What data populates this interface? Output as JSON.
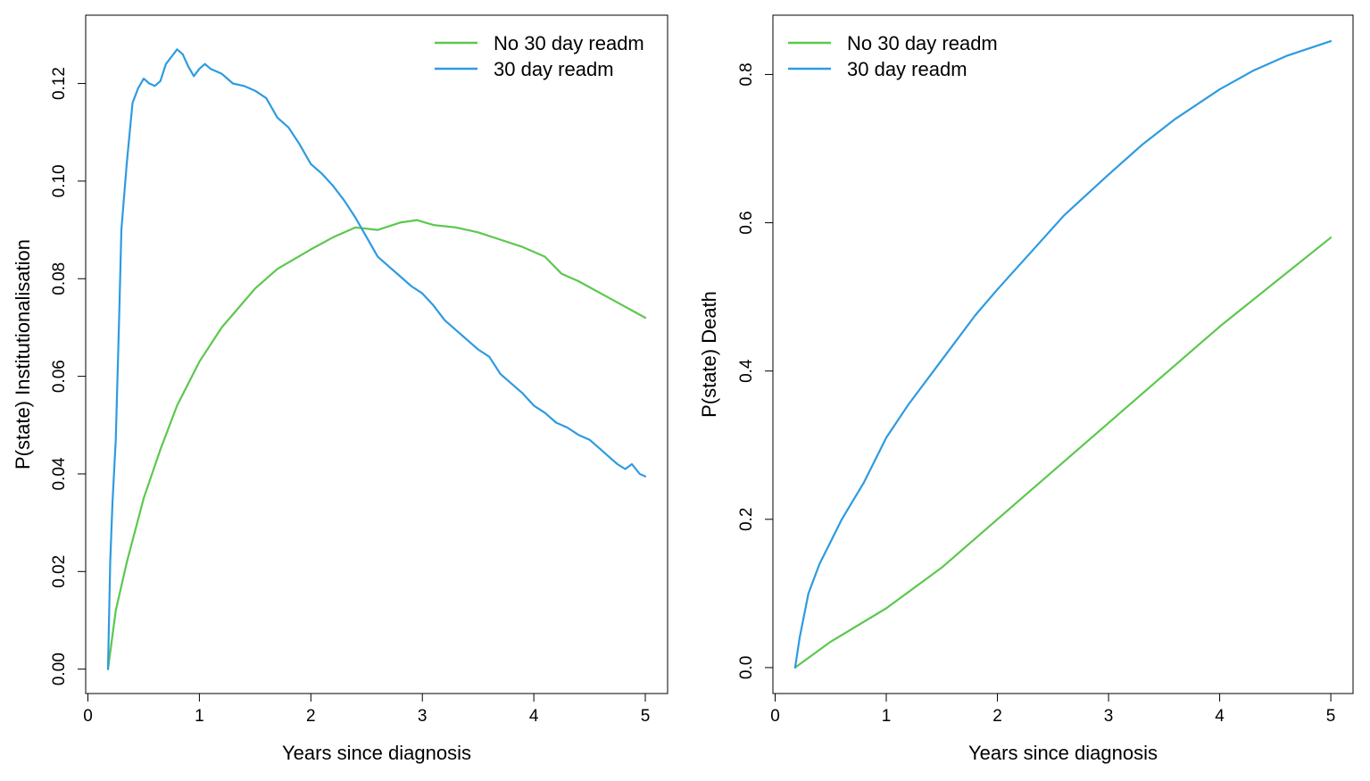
{
  "chart_data": [
    {
      "type": "line",
      "title": "",
      "xlabel": "Years since diagnosis",
      "ylabel": "P(state) Institutionalisation",
      "xlim": [
        -0.02,
        5.2
      ],
      "ylim": [
        -0.005,
        0.134
      ],
      "xticks": [
        0,
        1,
        2,
        3,
        4,
        5
      ],
      "xtick_labels": [
        "0",
        "1",
        "2",
        "3",
        "4",
        "5"
      ],
      "yticks": [
        0.0,
        0.02,
        0.04,
        0.06,
        0.08,
        0.1,
        0.12
      ],
      "ytick_labels": [
        "0.00",
        "0.02",
        "0.04",
        "0.06",
        "0.08",
        "0.10",
        "0.12"
      ],
      "grid": false,
      "legend_position": "top-right",
      "series": [
        {
          "name": "No 30 day readm",
          "color": "#5cc84e",
          "x": [
            0.18,
            0.25,
            0.35,
            0.5,
            0.65,
            0.8,
            1.0,
            1.2,
            1.5,
            1.7,
            2.0,
            2.2,
            2.4,
            2.6,
            2.8,
            2.95,
            3.1,
            3.3,
            3.5,
            3.7,
            3.9,
            4.1,
            4.25,
            4.4,
            4.6,
            4.8,
            5.0
          ],
          "y": [
            0.0,
            0.012,
            0.022,
            0.035,
            0.045,
            0.054,
            0.063,
            0.07,
            0.078,
            0.082,
            0.086,
            0.0885,
            0.0905,
            0.09,
            0.0915,
            0.092,
            0.091,
            0.0905,
            0.0895,
            0.088,
            0.0865,
            0.0845,
            0.081,
            0.0795,
            0.077,
            0.0745,
            0.072
          ]
        },
        {
          "name": "30 day readm",
          "color": "#2e9be0",
          "x": [
            0.18,
            0.2,
            0.22,
            0.25,
            0.28,
            0.3,
            0.35,
            0.4,
            0.45,
            0.5,
            0.55,
            0.6,
            0.65,
            0.7,
            0.75,
            0.8,
            0.85,
            0.9,
            0.95,
            1.0,
            1.05,
            1.1,
            1.2,
            1.3,
            1.4,
            1.5,
            1.6,
            1.7,
            1.8,
            1.9,
            2.0,
            2.1,
            2.2,
            2.3,
            2.4,
            2.5,
            2.6,
            2.7,
            2.8,
            2.9,
            3.0,
            3.1,
            3.2,
            3.3,
            3.4,
            3.5,
            3.6,
            3.7,
            3.8,
            3.9,
            4.0,
            4.1,
            4.2,
            4.3,
            4.4,
            4.5,
            4.6,
            4.7,
            4.75,
            4.82,
            4.88,
            4.95,
            5.0
          ],
          "y": [
            0.0,
            0.022,
            0.034,
            0.047,
            0.072,
            0.09,
            0.104,
            0.116,
            0.119,
            0.121,
            0.12,
            0.1195,
            0.1205,
            0.124,
            0.1255,
            0.127,
            0.126,
            0.1235,
            0.1215,
            0.123,
            0.124,
            0.123,
            0.122,
            0.12,
            0.1195,
            0.1185,
            0.117,
            0.113,
            0.111,
            0.1075,
            0.1035,
            0.1015,
            0.099,
            0.096,
            0.0925,
            0.0885,
            0.0845,
            0.0825,
            0.0805,
            0.0785,
            0.077,
            0.0745,
            0.0715,
            0.0695,
            0.0675,
            0.0655,
            0.064,
            0.0605,
            0.0585,
            0.0565,
            0.054,
            0.0525,
            0.0505,
            0.0495,
            0.048,
            0.047,
            0.045,
            0.043,
            0.042,
            0.041,
            0.042,
            0.04,
            0.0395
          ]
        }
      ]
    },
    {
      "type": "line",
      "title": "",
      "xlabel": "Years since diagnosis",
      "ylabel": "P(state) Death",
      "xlim": [
        -0.02,
        5.2
      ],
      "ylim": [
        -0.035,
        0.88
      ],
      "xticks": [
        0,
        1,
        2,
        3,
        4,
        5
      ],
      "xtick_labels": [
        "0",
        "1",
        "2",
        "3",
        "4",
        "5"
      ],
      "yticks": [
        0.0,
        0.2,
        0.4,
        0.6,
        0.8
      ],
      "ytick_labels": [
        "0.0",
        "0.2",
        "0.4",
        "0.6",
        "0.8"
      ],
      "grid": false,
      "legend_position": "top-left",
      "series": [
        {
          "name": "No 30 day readm",
          "color": "#5cc84e",
          "x": [
            0.18,
            0.5,
            1.0,
            1.5,
            2.0,
            2.5,
            3.0,
            3.5,
            4.0,
            4.5,
            5.0
          ],
          "y": [
            0.0,
            0.035,
            0.08,
            0.135,
            0.2,
            0.265,
            0.33,
            0.395,
            0.46,
            0.52,
            0.58
          ]
        },
        {
          "name": "30 day readm",
          "color": "#2e9be0",
          "x": [
            0.18,
            0.22,
            0.3,
            0.4,
            0.5,
            0.6,
            0.8,
            1.0,
            1.2,
            1.5,
            1.8,
            2.0,
            2.3,
            2.6,
            3.0,
            3.3,
            3.6,
            4.0,
            4.3,
            4.6,
            5.0
          ],
          "y": [
            0.0,
            0.04,
            0.1,
            0.14,
            0.17,
            0.2,
            0.25,
            0.31,
            0.355,
            0.415,
            0.475,
            0.51,
            0.56,
            0.61,
            0.665,
            0.705,
            0.74,
            0.78,
            0.805,
            0.825,
            0.845
          ]
        }
      ]
    }
  ]
}
